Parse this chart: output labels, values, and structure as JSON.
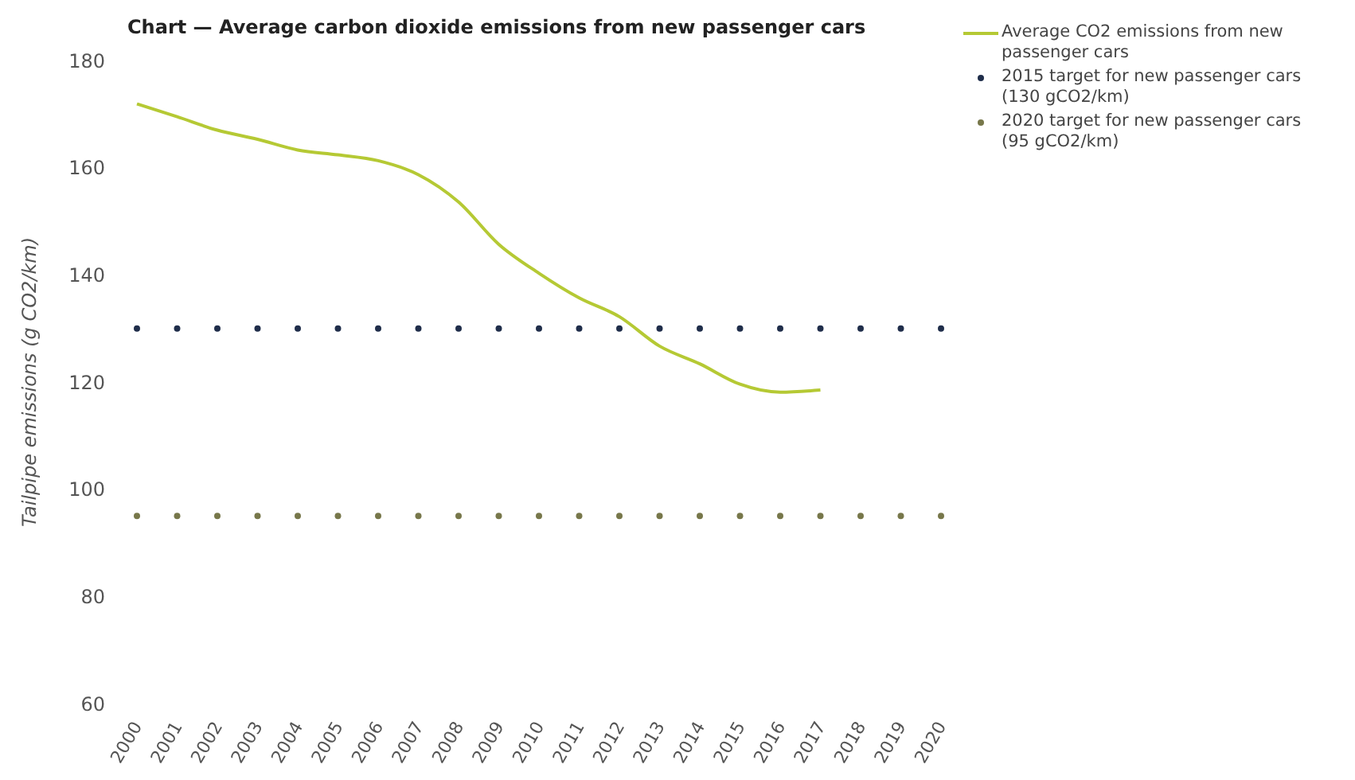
{
  "chart_data": {
    "type": "line",
    "title": "Chart — Average carbon dioxide emissions from new passenger cars",
    "ylabel": "Tailpipe emissions (g CO2/km)",
    "categories": [
      "2000",
      "2001",
      "2002",
      "2003",
      "2004",
      "2005",
      "2006",
      "2007",
      "2008",
      "2009",
      "2010",
      "2011",
      "2012",
      "2013",
      "2014",
      "2015",
      "2016",
      "2017",
      "2018",
      "2019",
      "2020"
    ],
    "series": [
      {
        "name": "Average CO2 emissions from new passenger cars",
        "color": "#b5c934",
        "marker": "none",
        "values": [
          171.9,
          169.5,
          167,
          165.3,
          163.3,
          162.4,
          161.3,
          158.7,
          153.6,
          145.7,
          140.3,
          135.7,
          132.2,
          126.7,
          123.4,
          119.6,
          118.1,
          118.5,
          null,
          null,
          null
        ]
      },
      {
        "name": "2015 target for new passenger cars (130 gCO2/km)",
        "type": "scatter",
        "color": "#1f2d4a",
        "marker": "circle",
        "values": [
          130,
          130,
          130,
          130,
          130,
          130,
          130,
          130,
          130,
          130,
          130,
          130,
          130,
          130,
          130,
          130,
          130,
          130,
          130,
          130,
          130
        ]
      },
      {
        "name": "2020 target for new passenger cars (95 gCO2/km)",
        "type": "scatter",
        "color": "#77774a",
        "marker": "circle",
        "values": [
          95,
          95,
          95,
          95,
          95,
          95,
          95,
          95,
          95,
          95,
          95,
          95,
          95,
          95,
          95,
          95,
          95,
          95,
          95,
          95,
          95
        ]
      }
    ],
    "ylim": [
      60,
      180
    ],
    "yticks": [
      60,
      80,
      100,
      120,
      140,
      160,
      180
    ],
    "legend": "top right"
  }
}
